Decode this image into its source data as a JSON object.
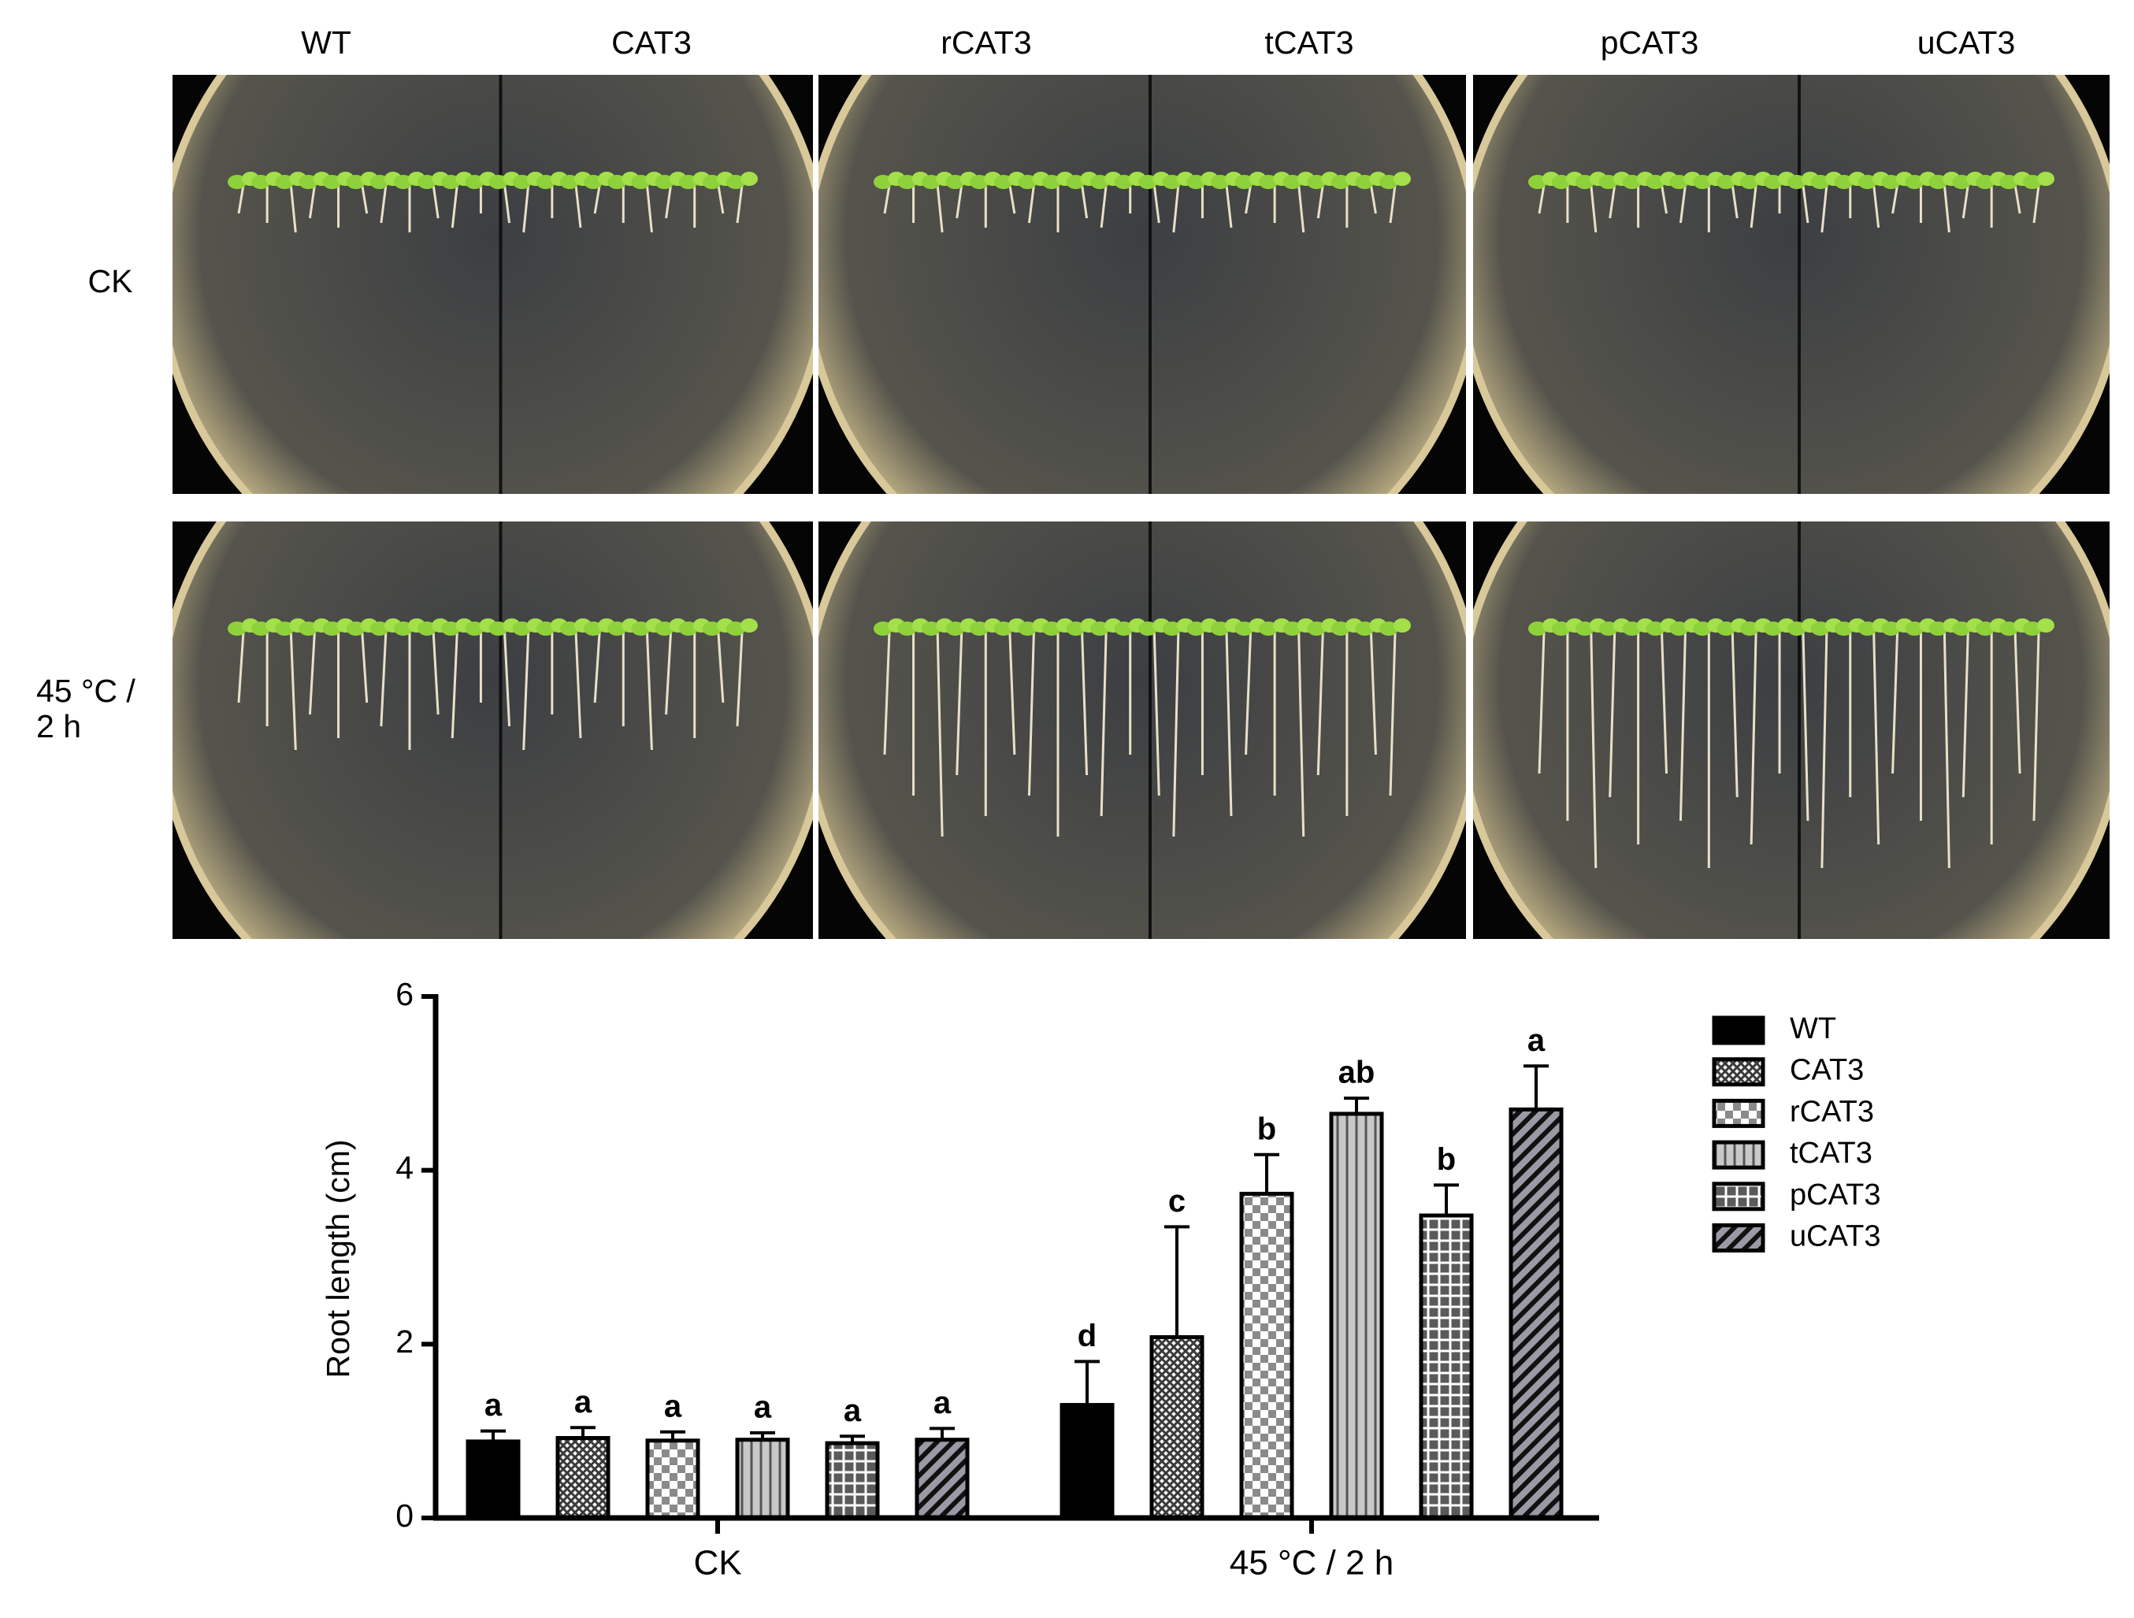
{
  "chart_data": {
    "type": "bar",
    "y_label": "Root length (cm)",
    "categories": [
      "CK",
      "45 °C / 2 h"
    ],
    "ylim": [
      0,
      6
    ],
    "yticks": [
      0,
      2,
      4,
      6
    ],
    "legend": "right",
    "series": [
      {
        "name": "WT",
        "color": "#000000",
        "pattern": "solid",
        "values": [
          0.88,
          1.3
        ],
        "errors": [
          0.12,
          0.5
        ],
        "letters": [
          "a",
          "d"
        ]
      },
      {
        "name": "CAT3",
        "color": "#3a3a3a",
        "pattern": "crosshatch",
        "values": [
          0.92,
          2.08
        ],
        "errors": [
          0.12,
          1.27
        ],
        "letters": [
          "a",
          "c"
        ]
      },
      {
        "name": "rCAT3",
        "color": "#8a8a8a",
        "pattern": "checker",
        "values": [
          0.89,
          3.73
        ],
        "errors": [
          0.1,
          0.45
        ],
        "letters": [
          "a",
          "b"
        ]
      },
      {
        "name": "tCAT3",
        "color": "#c8c8c8",
        "pattern": "vertical",
        "values": [
          0.9,
          4.65
        ],
        "errors": [
          0.08,
          0.18
        ],
        "letters": [
          "a",
          "ab"
        ]
      },
      {
        "name": "pCAT3",
        "color": "#5a5a5a",
        "pattern": "grid",
        "values": [
          0.86,
          3.48
        ],
        "errors": [
          0.08,
          0.35
        ],
        "letters": [
          "a",
          "b"
        ]
      },
      {
        "name": "uCAT3",
        "color": "#9a9aa6",
        "pattern": "diagonal",
        "values": [
          0.9,
          4.7
        ],
        "errors": [
          0.13,
          0.5
        ],
        "letters": [
          "a",
          "a"
        ]
      }
    ]
  }
}
